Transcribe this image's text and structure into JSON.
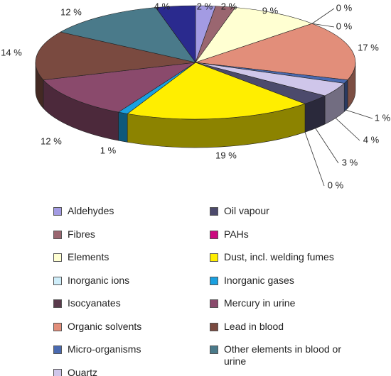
{
  "chart_data": {
    "type": "pie",
    "categories": [
      "Aldehydes",
      "Fibres",
      "Elements",
      "Inorganic ions",
      "Isocyanates",
      "Organic solvents",
      "Micro-organisms",
      "Quartz",
      "Oil vapour",
      "PAHs",
      "Dust, incl. welding fumes",
      "Inorganic gases",
      "Mercury in urine",
      "Lead in blood",
      "Other elements in blood or urine",
      null
    ],
    "values": [
      2,
      2,
      9,
      0,
      0,
      17,
      1,
      4,
      3,
      0,
      19,
      1,
      12,
      14,
      12,
      4
    ],
    "value_labels": [
      "2 %",
      "2 %",
      "9 %",
      "0 %",
      "0 %",
      "17 %",
      "1 %",
      "4 %",
      "3 %",
      "0 %",
      "19 %",
      "1 %",
      "12 %",
      "14 %",
      "12 %",
      "4 %"
    ],
    "colors": [
      "#a39be3",
      "#9a6670",
      "#ffffd2",
      "#cfeefa",
      "#5a3a4c",
      "#e28e7a",
      "#4a6ab0",
      "#cfc6ea",
      "#4c4a6c",
      "#cc0a80",
      "#ffee00",
      "#1aa0e0",
      "#8a4a6c",
      "#7a4a40",
      "#4a7a8a",
      "#2a2a8e"
    ]
  }
}
